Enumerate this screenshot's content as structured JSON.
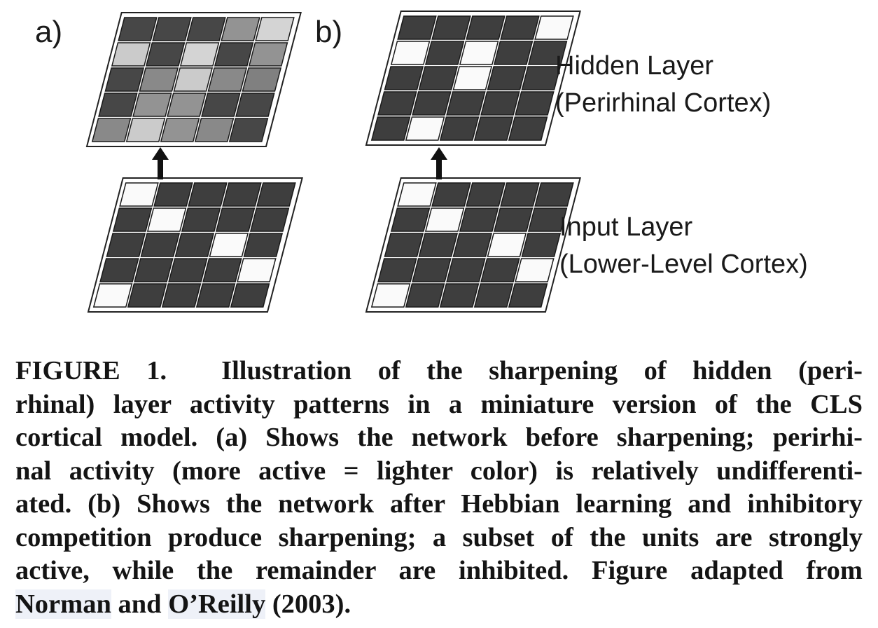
{
  "panels": [
    {
      "label": "a)",
      "hidden_layer_activity": [
        [
          0.05,
          0.05,
          0.05,
          0.45,
          0.8
        ],
        [
          0.75,
          0.05,
          0.8,
          0.05,
          0.45
        ],
        [
          0.05,
          0.4,
          0.75,
          0.4,
          0.35
        ],
        [
          0.05,
          0.45,
          0.45,
          0.05,
          0.05
        ],
        [
          0.4,
          0.75,
          0.45,
          0.4,
          0.05
        ]
      ],
      "input_layer_activity": [
        [
          1,
          0,
          0,
          0,
          0
        ],
        [
          0,
          1,
          0,
          0,
          0
        ],
        [
          0,
          0,
          0,
          1,
          0
        ],
        [
          0,
          0,
          0,
          0,
          1
        ],
        [
          1,
          0,
          0,
          0,
          0
        ]
      ]
    },
    {
      "label": "b)",
      "hidden_layer_activity": [
        [
          0,
          0,
          0,
          0,
          1
        ],
        [
          1,
          0,
          1,
          0,
          0
        ],
        [
          0,
          0,
          1,
          0,
          0
        ],
        [
          0,
          0,
          0,
          0,
          0
        ],
        [
          0,
          1,
          0,
          0,
          0
        ]
      ],
      "input_layer_activity": [
        [
          1,
          0,
          0,
          0,
          0
        ],
        [
          0,
          1,
          0,
          0,
          0
        ],
        [
          0,
          0,
          0,
          1,
          0
        ],
        [
          0,
          0,
          0,
          0,
          1
        ],
        [
          1,
          0,
          0,
          0,
          0
        ]
      ]
    }
  ],
  "hidden_layer_label": [
    "Hidden Layer",
    "(Perirhinal Cortex)"
  ],
  "input_layer_label": [
    "Input Layer",
    "(Lower-Level Cortex)"
  ],
  "caption": {
    "figure_number": "FIGURE 1.",
    "lines": [
      "Illustration of the sharpening of hidden (peri-",
      "rhinal) layer activity patterns in a miniature version of the CLS",
      "cortical model. (a) Shows the network before sharpening; perirhi-",
      "nal activity (more active = lighter color) is relatively undifferenti-",
      "ated. (b) Shows the network after Hebbian learning and inhibitory",
      "competition produce sharpening; a subset of the units are strongly",
      "active, while the remainder are inhibited. Figure adapted from"
    ],
    "ref_author_1": "Norman",
    "ref_and": "and",
    "ref_author_2": "O’Reilly",
    "ref_year": "(2003)."
  }
}
